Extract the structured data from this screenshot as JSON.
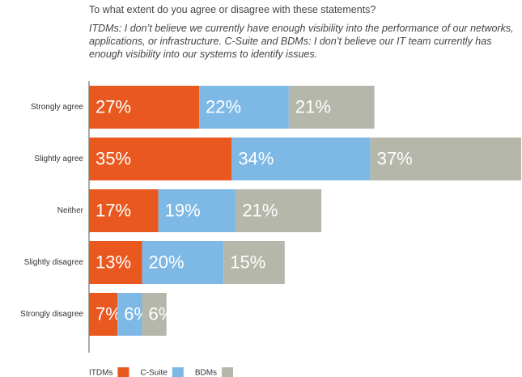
{
  "chart_data": {
    "type": "stacked-bar-horizontal",
    "title": "To what extent do you agree or disagree with these statements?",
    "subtitle": "ITDMs: I don’t believe we currently have enough visibility into the performance of our networks, applications, or infrastructure. C-Suite and BDMs: I don’t believe our IT team currently has enough visibility into our systems to identify issues.",
    "categories": [
      "Strongly agree",
      "Slightly agree",
      "Neither",
      "Slightly disagree",
      "Strongly disagree"
    ],
    "series": [
      {
        "name": "ITDMs",
        "color": "#e8581f",
        "values": [
          27,
          35,
          17,
          13,
          7
        ],
        "value_labels": [
          "27%",
          "35%",
          "17%",
          "13%",
          "7%"
        ]
      },
      {
        "name": "C-Suite",
        "color": "#7eb9e6",
        "values": [
          22,
          34,
          19,
          20,
          6
        ],
        "value_labels": [
          "22%",
          "34%",
          "19%",
          "20%",
          "6%"
        ]
      },
      {
        "name": "BDMs",
        "color": "#b5b7ab",
        "values": [
          21,
          37,
          21,
          15,
          6
        ],
        "value_labels": [
          "21%",
          "37%",
          "21%",
          "15%",
          "6%"
        ]
      }
    ]
  }
}
